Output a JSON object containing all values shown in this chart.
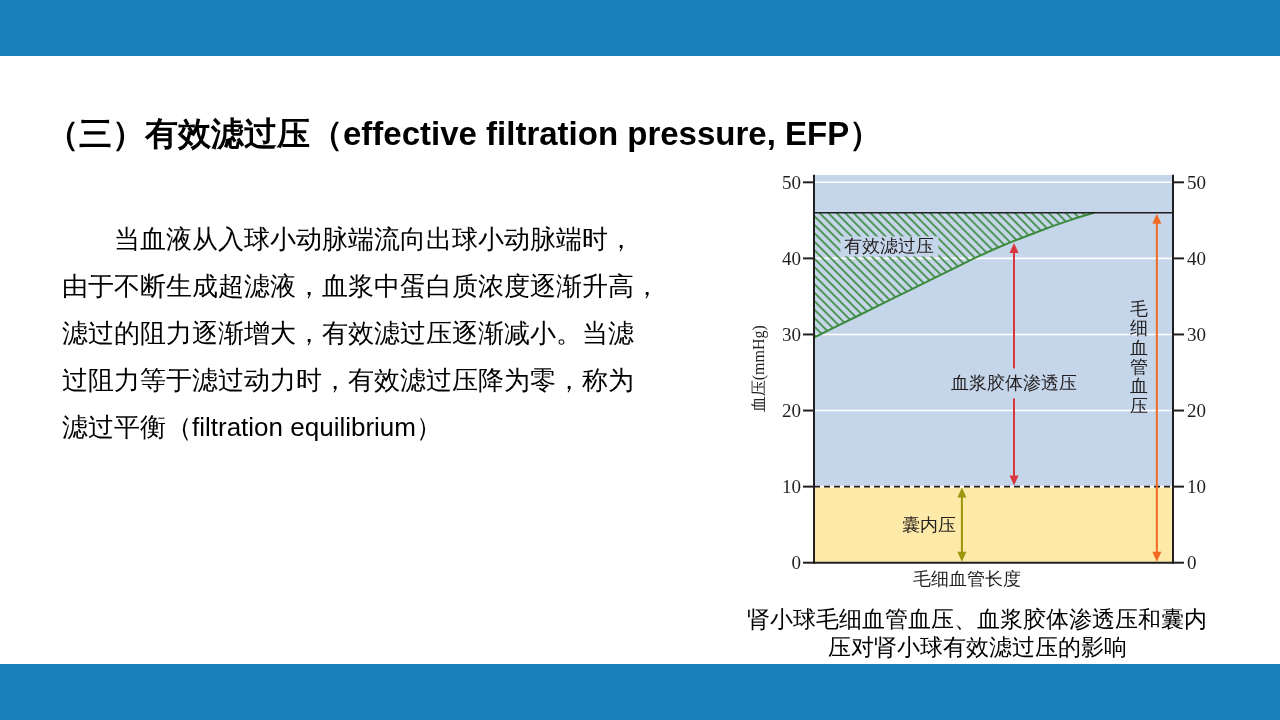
{
  "chart_data": {
    "type": "line",
    "title": "（三）有效滤过压（effective filtration pressure, EFP）",
    "xlabel": "毛细血管长度",
    "ylabel": "血压(mmHg)",
    "categories": [
      null,
      null,
      null,
      null,
      null,
      null,
      null,
      null,
      null,
      null,
      null,
      null,
      null,
      null,
      null
    ],
    "series": [
      {
        "color": "#3b8a3e",
        "values": [
          29.6,
          30.9,
          32.2,
          33.5,
          34.8,
          36.1,
          37.4,
          38.7,
          40.0,
          41.2,
          42.3,
          43.3,
          44.3,
          45.2,
          46
        ],
        "lower": [
          29.6,
          30.9,
          32.2,
          33.5,
          34.8,
          36.1,
          37.4,
          38.7,
          40.0,
          41.2,
          42.3,
          43.3,
          44.3,
          45.2,
          46
        ],
        "upper": [
          46,
          46,
          46,
          46,
          46,
          46,
          46,
          46,
          46,
          46,
          46,
          46,
          46,
          46,
          46
        ]
      }
    ],
    "ylim": [
      0,
      51
    ],
    "yticks": [
      0,
      10,
      20,
      30,
      40,
      50
    ],
    "y2lim": [
      0,
      51
    ],
    "y2ticks": [
      0,
      10,
      20,
      30,
      40,
      50
    ],
    "grid": "y",
    "bands": [
      {
        "axis": "y",
        "from": 0,
        "to": 10,
        "label": "囊内压",
        "color": "#fde9a8"
      },
      {
        "axis": "y",
        "from": 10,
        "to": 51,
        "color": "#c6d6ea"
      }
    ],
    "ref_lines": [
      {
        "axis": "y",
        "value": 10,
        "line_style": "dashed",
        "color": "#231f20"
      },
      {
        "axis": "y",
        "value": 46,
        "line_style": "solid",
        "color": "#231f20",
        "label": "毛细血管血压"
      }
    ],
    "annotations": [
      "有效滤过压",
      "血浆胶体渗透压",
      "当血液从入球小动脉端流向出球小动脉端时，由于不断生成超滤液，血浆中蛋白质浓度逐渐升高，滤过的阻力逐渐增大，有效滤过压逐渐减小。当滤过阻力等于滤过动力时，有效滤过压降为零，称为滤过平衡（filtration equilibrium）",
      "肾小球毛细血管血压、血浆胶体渗透压和囊内压对肾小球有效滤过压的影响"
    ]
  }
}
